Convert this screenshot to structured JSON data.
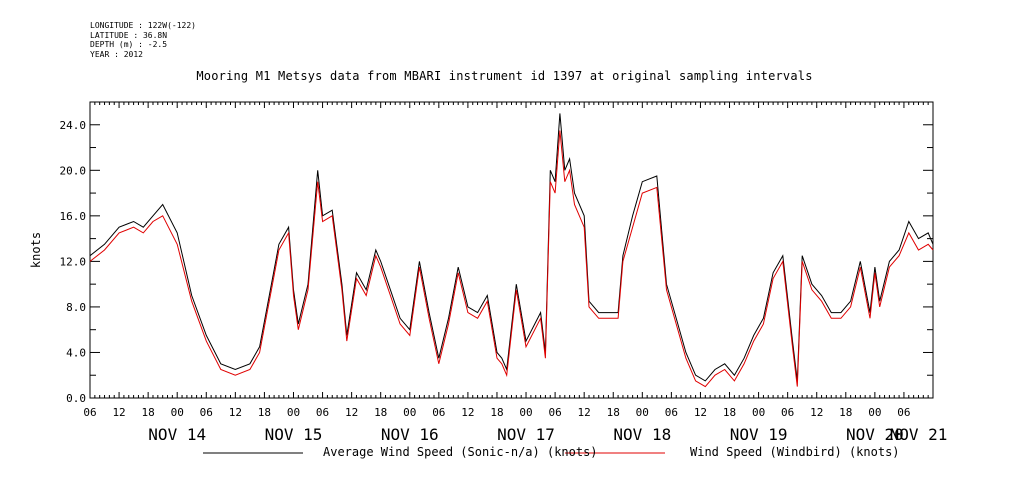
{
  "metadata": {
    "longitude": "LONGITUDE : 122W(-122)",
    "latitude": "LATITUDE : 36.8N",
    "depth": "DEPTH (m) : -2.5",
    "year": "YEAR : 2012"
  },
  "chart_data": {
    "type": "line",
    "title": "Mooring M1 Metsys data from MBARI instrument id 1397 at original sampling intervals",
    "ylabel": "knots",
    "xlabel": "",
    "ylim": [
      0,
      26
    ],
    "y_ticks": [
      0.0,
      4.0,
      8.0,
      12.0,
      16.0,
      20.0,
      24.0
    ],
    "y_tick_labels": [
      "0.0",
      "4.0",
      "8.0",
      "12.0",
      "16.0",
      "20.0",
      "24.0"
    ],
    "xlim_hours": [
      0,
      174
    ],
    "x_hour_tick_labels": [
      "06",
      "12",
      "18",
      "00",
      "06",
      "12",
      "18",
      "00",
      "06",
      "12",
      "18",
      "00",
      "06",
      "12",
      "18",
      "00",
      "06",
      "12",
      "18",
      "00",
      "06",
      "12",
      "18",
      "00",
      "06",
      "12",
      "18",
      "00",
      "06"
    ],
    "x_day_labels": [
      {
        "label": "NOV 14",
        "hour": 18
      },
      {
        "label": "NOV 15",
        "hour": 42
      },
      {
        "label": "NOV 16",
        "hour": 66
      },
      {
        "label": "NOV 17",
        "hour": 90
      },
      {
        "label": "NOV 18",
        "hour": 114
      },
      {
        "label": "NOV 19",
        "hour": 138
      },
      {
        "label": "NOV 20",
        "hour": 162
      },
      {
        "label": "NOV 21",
        "hour": 171
      }
    ],
    "grid": false,
    "legend": "bottom",
    "series": [
      {
        "name": "Average Wind Speed (Sonic-n/a) (knots)",
        "color": "#000000",
        "x_hours": [
          0,
          3,
          6,
          9,
          11,
          13,
          15,
          18,
          21,
          24,
          27,
          30,
          33,
          35,
          37,
          39,
          41,
          42,
          43,
          45,
          47,
          48,
          50,
          52,
          53,
          55,
          57,
          59,
          60,
          62,
          64,
          66,
          68,
          70,
          72,
          74,
          76,
          78,
          80,
          82,
          84,
          85,
          86,
          88,
          90,
          93,
          94,
          95,
          96,
          97,
          98,
          99,
          100,
          102,
          103,
          105,
          107,
          109,
          110,
          112,
          114,
          117,
          119,
          121,
          123,
          125,
          127,
          129,
          131,
          133,
          135,
          137,
          139,
          141,
          143,
          145,
          146,
          147,
          149,
          151,
          153,
          155,
          157,
          159,
          161,
          162,
          163,
          165,
          167,
          169,
          171,
          173,
          174
        ],
        "values": [
          12.5,
          13.5,
          15.0,
          15.5,
          15.0,
          16.0,
          17.0,
          14.5,
          9.0,
          5.5,
          3.0,
          2.5,
          3.0,
          4.5,
          9.0,
          13.5,
          15.0,
          9.5,
          6.5,
          10.0,
          20.0,
          16.0,
          16.5,
          10.0,
          5.5,
          11.0,
          9.5,
          13.0,
          12.0,
          9.5,
          7.0,
          6.0,
          12.0,
          7.5,
          3.5,
          7.0,
          11.5,
          8.0,
          7.5,
          9.0,
          4.0,
          3.5,
          2.5,
          10.0,
          5.0,
          7.5,
          4.0,
          20.0,
          19.0,
          25.0,
          20.0,
          21.0,
          18.0,
          16.0,
          8.5,
          7.5,
          7.5,
          7.5,
          12.5,
          16.0,
          19.0,
          19.5,
          10.0,
          7.0,
          4.0,
          2.0,
          1.5,
          2.5,
          3.0,
          2.0,
          3.5,
          5.5,
          7.0,
          11.0,
          12.5,
          5.0,
          1.5,
          12.5,
          10.0,
          9.0,
          7.5,
          7.5,
          8.5,
          12.0,
          7.5,
          11.5,
          8.5,
          12.0,
          13.0,
          15.5,
          14.0,
          14.5,
          13.5
        ]
      },
      {
        "name": "Wind Speed (Windbird) (knots)",
        "color": "#e00000",
        "x_hours": [
          0,
          3,
          6,
          9,
          11,
          13,
          15,
          18,
          21,
          24,
          27,
          30,
          33,
          35,
          37,
          39,
          41,
          42,
          43,
          45,
          47,
          48,
          50,
          52,
          53,
          55,
          57,
          59,
          60,
          62,
          64,
          66,
          68,
          70,
          72,
          74,
          76,
          78,
          80,
          82,
          84,
          85,
          86,
          88,
          90,
          93,
          94,
          95,
          96,
          97,
          98,
          99,
          100,
          102,
          103,
          105,
          107,
          109,
          110,
          112,
          114,
          117,
          119,
          121,
          123,
          125,
          127,
          129,
          131,
          133,
          135,
          137,
          139,
          141,
          143,
          145,
          146,
          147,
          149,
          151,
          153,
          155,
          157,
          159,
          161,
          162,
          163,
          165,
          167,
          169,
          171,
          173,
          174
        ],
        "values": [
          12.0,
          13.0,
          14.5,
          15.0,
          14.5,
          15.5,
          16.0,
          13.5,
          8.5,
          5.0,
          2.5,
          2.0,
          2.5,
          4.0,
          8.5,
          13.0,
          14.5,
          9.0,
          6.0,
          9.5,
          19.0,
          15.5,
          16.0,
          9.5,
          5.0,
          10.5,
          9.0,
          12.5,
          11.5,
          9.0,
          6.5,
          5.5,
          11.5,
          7.0,
          3.0,
          6.5,
          11.0,
          7.5,
          7.0,
          8.5,
          3.5,
          3.0,
          2.0,
          9.5,
          4.5,
          7.0,
          3.5,
          19.0,
          18.0,
          23.5,
          19.0,
          20.0,
          17.0,
          15.0,
          8.0,
          7.0,
          7.0,
          7.0,
          12.0,
          15.0,
          18.0,
          18.5,
          9.5,
          6.5,
          3.5,
          1.5,
          1.0,
          2.0,
          2.5,
          1.5,
          3.0,
          5.0,
          6.5,
          10.5,
          12.0,
          4.5,
          1.0,
          12.0,
          9.5,
          8.5,
          7.0,
          7.0,
          8.0,
          11.5,
          7.0,
          11.0,
          8.0,
          11.5,
          12.5,
          14.5,
          13.0,
          13.5,
          13.0
        ]
      }
    ]
  }
}
